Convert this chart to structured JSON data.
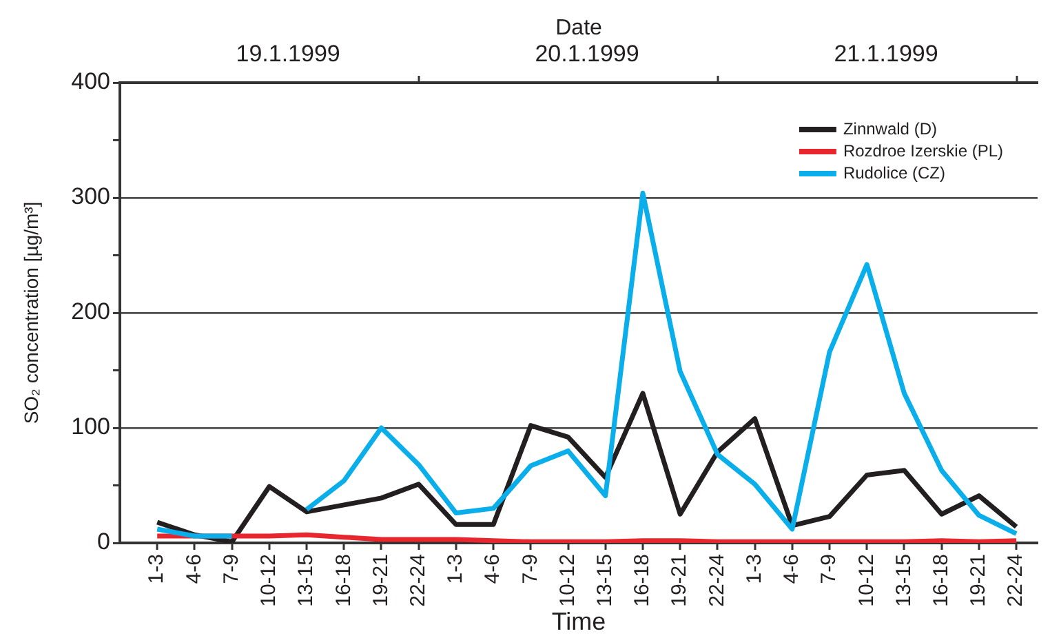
{
  "chart_data": {
    "type": "line",
    "xlabel": "Time",
    "ylabel": "SO₂ concentration [µg/m³]",
    "x2label": "Date",
    "categories": [
      "1-3",
      "4-6",
      "7-9",
      "10-12",
      "13-15",
      "16-18",
      "19-21",
      "22-24",
      "1-3",
      "4-6",
      "7-9",
      "10-12",
      "13-15",
      "16-18",
      "19-21",
      "22-24",
      "1-3",
      "4-6",
      "7-9",
      "10-12",
      "13-15",
      "16-18",
      "19-21",
      "22-24"
    ],
    "series": [
      {
        "name": "Zinnwald (D)",
        "color": "#231f20",
        "values": [
          18,
          7,
          1,
          49,
          27,
          33,
          39,
          51,
          16,
          16,
          102,
          92,
          57,
          130,
          25,
          79,
          108,
          15,
          23,
          59,
          63,
          25,
          41,
          14
        ]
      },
      {
        "name": "Rozdroe Izerskie (PL)",
        "color": "#e8262d",
        "values": [
          6,
          6,
          6,
          6,
          7,
          5,
          3,
          3,
          3,
          2,
          1,
          1,
          1,
          2,
          2,
          1,
          1,
          1,
          1,
          1,
          1,
          2,
          1,
          2
        ]
      },
      {
        "name": "Rudolice (CZ)",
        "color": "#0aaeea",
        "values": [
          12,
          6,
          6,
          null,
          29,
          54,
          100,
          68,
          26,
          30,
          67,
          80,
          41,
          304,
          149,
          77,
          51,
          12,
          166,
          242,
          130,
          63,
          24,
          8
        ]
      }
    ],
    "ylim": [
      0,
      400
    ],
    "yticks": [
      0,
      {
        "value": 50,
        "label": null
      },
      100,
      {
        "value": 150,
        "label": null
      },
      200,
      {
        "value": 250,
        "label": null
      },
      300,
      {
        "value": 350,
        "label": null
      },
      400
    ],
    "x2lim": [
      "1999-01-19T00:00",
      "1999-01-22T01:40"
    ],
    "x2ticks": [
      {
        "value": "1999-01-19T13:30",
        "label": "19.1.1999"
      },
      {
        "value": "1999-01-20T00:00",
        "label": null
      },
      {
        "value": "1999-01-20T13:30",
        "label": "20.1.1999"
      },
      {
        "value": "1999-01-21T00:00",
        "label": null
      },
      {
        "value": "1999-01-21T13:30",
        "label": "21.1.1999"
      },
      {
        "value": "1999-01-22T00:00",
        "label": null
      }
    ],
    "grid": "y",
    "legend": "top right",
    "marker": "none",
    "line_style": "solid"
  }
}
